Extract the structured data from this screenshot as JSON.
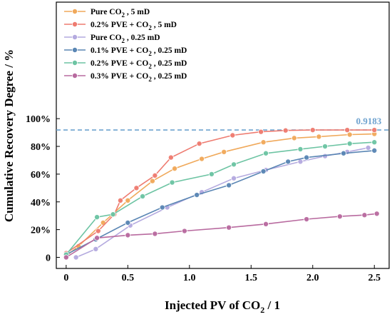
{
  "chart_data": {
    "type": "line",
    "xlabel": "Injected PV of CO",
    "xlabel_sub": "2",
    "xlabel_suffix": " / 1",
    "ylabel": "Cumulative Recovery Degree / %",
    "xlim": [
      -0.08,
      2.62
    ],
    "ylim": [
      -0.08,
      1.84
    ],
    "x_ticks": [
      {
        "value": 0,
        "label": "0"
      },
      {
        "value": 0.5,
        "label": "0.5"
      },
      {
        "value": 1.0,
        "label": "1.0"
      },
      {
        "value": 1.5,
        "label": "1.5"
      },
      {
        "value": 2.0,
        "label": "2.0"
      },
      {
        "value": 2.5,
        "label": "2.5"
      }
    ],
    "y_ticks": [
      {
        "value": 0,
        "label": "0"
      },
      {
        "value": 0.2,
        "label": "20%"
      },
      {
        "value": 0.4,
        "label": "40%"
      },
      {
        "value": 0.6,
        "label": "60%"
      },
      {
        "value": 0.8,
        "label": "80%"
      },
      {
        "value": 1.0,
        "label": "100%"
      }
    ],
    "reference_line": {
      "y": 0.9183,
      "label": "0.9183",
      "color": "#6fa3cf",
      "style": "dashed"
    },
    "legend_position": "top-left",
    "series": [
      {
        "legend": [
          "Pure CO",
          "2",
          " , 5 mD"
        ],
        "color": "#f0a95b",
        "x": [
          0,
          0.1,
          0.3,
          0.5,
          0.7,
          0.88,
          1.1,
          1.28,
          1.6,
          1.85,
          2.05,
          2.3,
          2.5
        ],
        "y": [
          0.01,
          0.08,
          0.25,
          0.41,
          0.55,
          0.64,
          0.71,
          0.76,
          0.83,
          0.86,
          0.87,
          0.885,
          0.89
        ]
      },
      {
        "legend": [
          "0.2% PVE + CO",
          "2",
          " , 5 mD"
        ],
        "color": "#ee7b70",
        "x": [
          0,
          0.26,
          0.39,
          0.44,
          0.57,
          0.72,
          0.85,
          1.08,
          1.35,
          1.58,
          1.78,
          2.0,
          2.28,
          2.5
        ],
        "y": [
          0.03,
          0.19,
          0.31,
          0.41,
          0.5,
          0.59,
          0.72,
          0.82,
          0.88,
          0.905,
          0.915,
          0.918,
          0.918,
          0.918
        ]
      },
      {
        "legend": [
          "Pure CO",
          "2",
          " , 0.25 mD"
        ],
        "color": "#b4aadf",
        "x": [
          0.08,
          0.24,
          0.52,
          0.82,
          1.1,
          1.36,
          1.62,
          1.9,
          2.1,
          2.28,
          2.45
        ],
        "y": [
          0.0,
          0.06,
          0.23,
          0.36,
          0.47,
          0.57,
          0.63,
          0.69,
          0.73,
          0.76,
          0.79
        ]
      },
      {
        "legend": [
          "0.1% PVE + CO",
          "2",
          " , 0.25 mD"
        ],
        "color": "#5a86b4",
        "x": [
          0,
          0.24,
          0.5,
          0.78,
          1.06,
          1.32,
          1.6,
          1.8,
          1.95,
          2.25,
          2.5
        ],
        "y": [
          0.02,
          0.13,
          0.25,
          0.36,
          0.45,
          0.52,
          0.62,
          0.69,
          0.72,
          0.75,
          0.77
        ]
      },
      {
        "legend": [
          "0.2% PVE + CO",
          "2",
          " , 0.25 mD"
        ],
        "color": "#6dc4a3",
        "x": [
          0,
          0.25,
          0.38,
          0.62,
          0.86,
          1.18,
          1.36,
          1.62,
          1.9,
          2.1,
          2.3,
          2.5
        ],
        "y": [
          0.02,
          0.29,
          0.31,
          0.44,
          0.54,
          0.6,
          0.67,
          0.75,
          0.78,
          0.8,
          0.82,
          0.83
        ]
      },
      {
        "legend": [
          "0.3% PVE + CO",
          "2",
          " , 0.25 mD"
        ],
        "color": "#b86a9f",
        "x": [
          0,
          0.25,
          0.5,
          0.72,
          0.96,
          1.32,
          1.62,
          1.95,
          2.22,
          2.42,
          2.52
        ],
        "y": [
          0.0,
          0.14,
          0.16,
          0.17,
          0.19,
          0.215,
          0.24,
          0.275,
          0.295,
          0.305,
          0.315
        ]
      }
    ]
  }
}
